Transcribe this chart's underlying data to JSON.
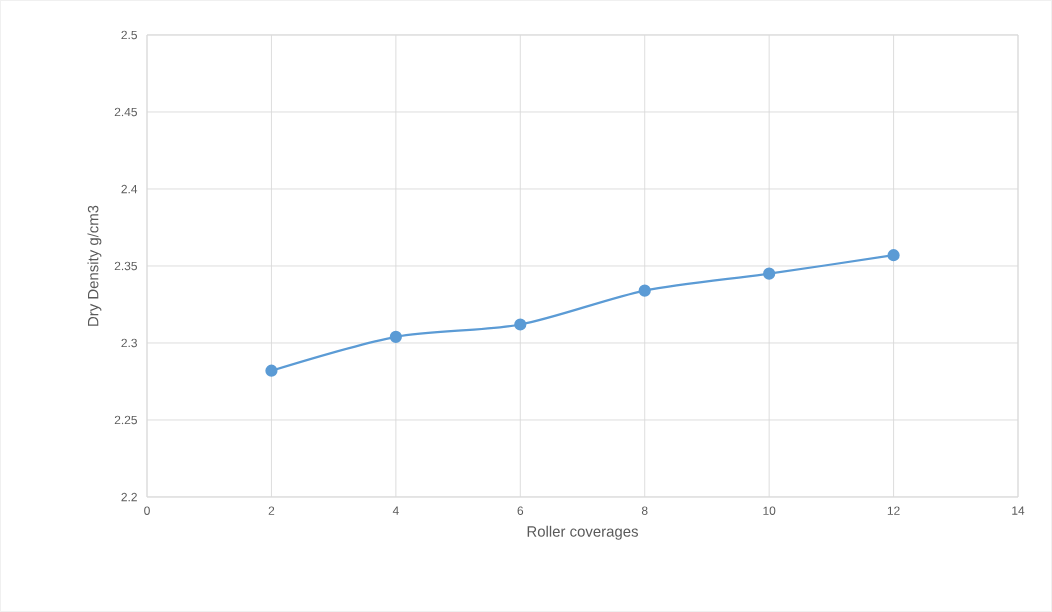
{
  "chart_data": {
    "type": "line",
    "xlabel": "Roller coverages",
    "ylabel": "Dry Density g/cm3",
    "x": [
      2,
      4,
      6,
      8,
      10,
      12
    ],
    "values": [
      2.282,
      2.304,
      2.312,
      2.334,
      2.345,
      2.357
    ],
    "color": "#5b9bd5",
    "marker": "circle",
    "grid": true,
    "xlim": [
      0,
      14
    ],
    "ylim": [
      2.2,
      2.5
    ],
    "xticks": [
      0,
      2,
      4,
      6,
      8,
      10,
      12,
      14
    ],
    "yticks": [
      2.2,
      2.25,
      2.3,
      2.35,
      2.4,
      2.45,
      2.5
    ]
  }
}
